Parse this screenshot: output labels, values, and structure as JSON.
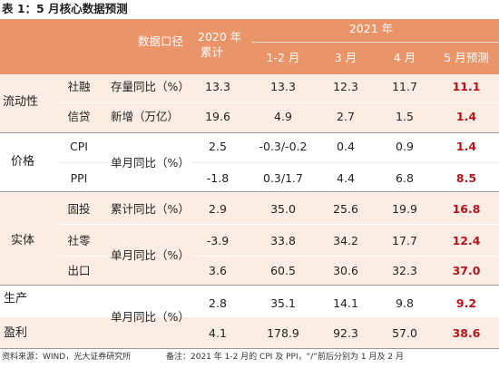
{
  "title": "表 1：5 月核心数据预测",
  "header": {
    "metric_label": "数据口径",
    "y2020_line1": "2020 年",
    "y2020_line2": "累计",
    "y2021": "2021 年",
    "months": [
      "1-2 月",
      "3 月",
      "4 月",
      "5 月预测"
    ]
  },
  "groups": [
    "流动性",
    "价格",
    "实体",
    "生产",
    "盈利"
  ],
  "metrics": [
    "存量同比（%）",
    "新增（万亿）",
    "单月同比（%）",
    "累计同比（%）",
    "单月同比（%）",
    "单月同比（%）"
  ],
  "rows": [
    {
      "item": "社融",
      "y2020": "13.3",
      "m12": "13.3",
      "m3": "12.3",
      "m4": "11.7",
      "m5": "11.1"
    },
    {
      "item": "信贷",
      "y2020": "19.6",
      "m12": "4.9",
      "m3": "2.7",
      "m4": "1.5",
      "m5": "1.4"
    },
    {
      "item": "CPI",
      "y2020": "2.5",
      "m12": "-0.3/-0.2",
      "m3": "0.4",
      "m4": "0.9",
      "m5": "1.4"
    },
    {
      "item": "PPI",
      "y2020": "-1.8",
      "m12": "0.3/1.7",
      "m3": "4.4",
      "m4": "6.8",
      "m5": "8.5"
    },
    {
      "item": "固投",
      "y2020": "2.9",
      "m12": "35.0",
      "m3": "25.6",
      "m4": "19.9",
      "m5": "16.8"
    },
    {
      "item": "社零",
      "y2020": "-3.9",
      "m12": "33.8",
      "m3": "34.2",
      "m4": "17.7",
      "m5": "12.4"
    },
    {
      "item": "出口",
      "y2020": "3.6",
      "m12": "60.5",
      "m3": "30.6",
      "m4": "32.3",
      "m5": "37.0"
    },
    {
      "y2020": "2.8",
      "m12": "35.1",
      "m3": "14.1",
      "m4": "9.8",
      "m5": "9.2"
    },
    {
      "y2020": "4.1",
      "m12": "178.9",
      "m3": "92.3",
      "m4": "57.0",
      "m5": "38.6"
    }
  ],
  "footer": {
    "source": "资料来源：WIND，光大证券研究所",
    "note": "备注：2021 年 1-2 月的 CPI 及 PPI，“/”前后分别为 1 月及 2 月"
  },
  "colors": {
    "header_bg": "#EA946A",
    "band_bg": "#FCEDE4",
    "forecast_text": "#B3151C"
  }
}
